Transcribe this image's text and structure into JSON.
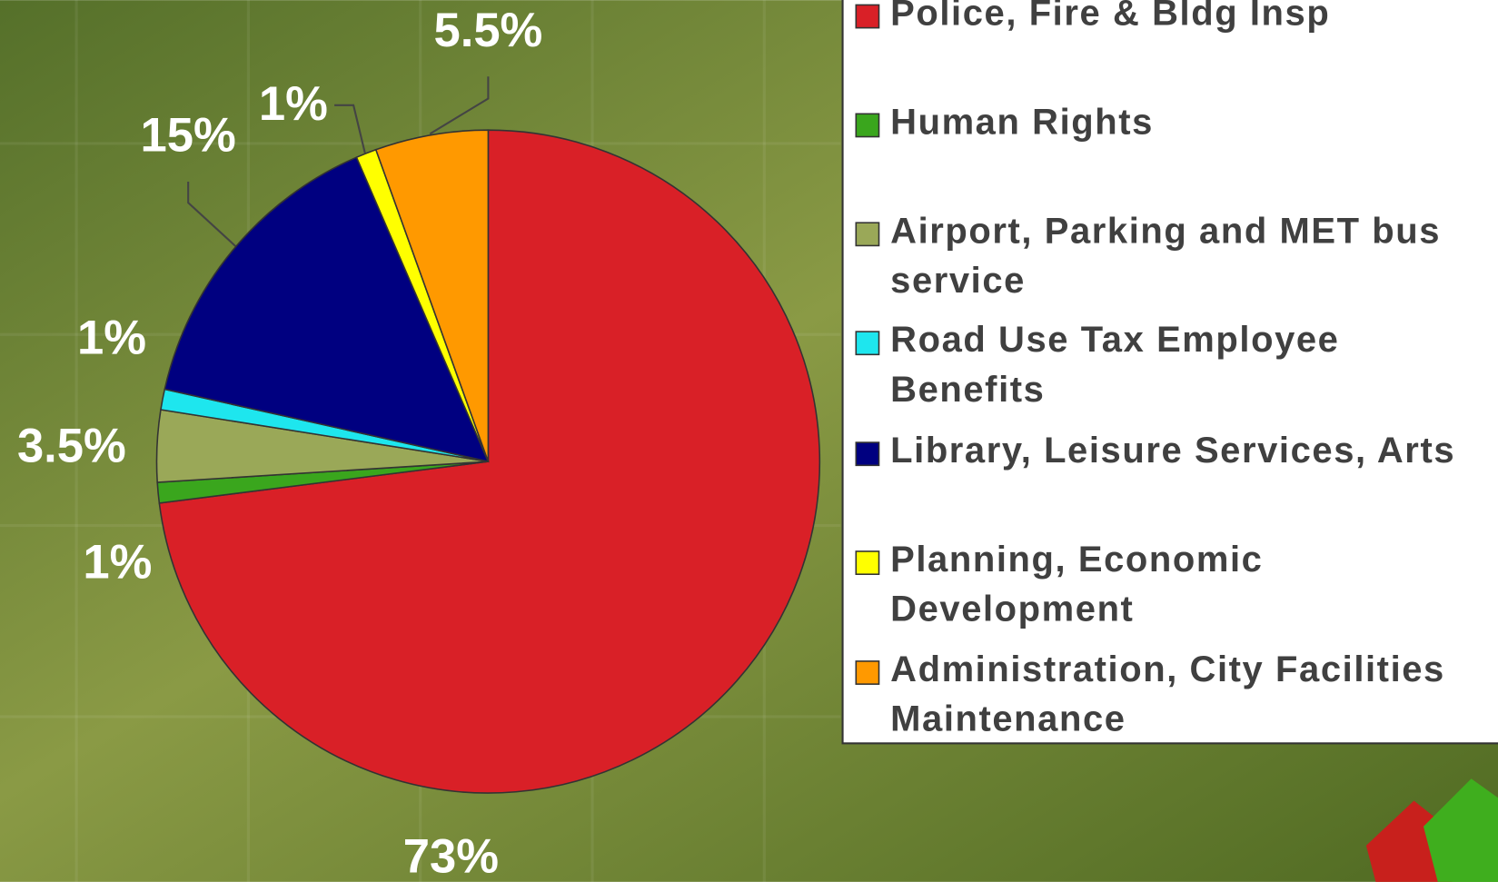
{
  "chart_data": {
    "type": "pie",
    "categories": [
      "Police, Fire & Bldg Insp",
      "Human Rights",
      "Airport, Parking and MET bus service",
      "Road Use Tax Employee Benefits",
      "Library, Leisure Services, Arts",
      "Planning, Economic Development",
      "Administration, City Facilities Maintenance"
    ],
    "values": [
      73,
      1,
      3.5,
      1,
      15,
      1,
      5.5
    ],
    "value_labels": [
      "73%",
      "1%",
      "3.5%",
      "1%",
      "15%",
      "1%",
      "5.5%"
    ],
    "colors": [
      "#d92027",
      "#3aa61d",
      "#9aa858",
      "#1ee6ee",
      "#000080",
      "#ffff00",
      "#ff9900"
    ],
    "legend": "right"
  }
}
